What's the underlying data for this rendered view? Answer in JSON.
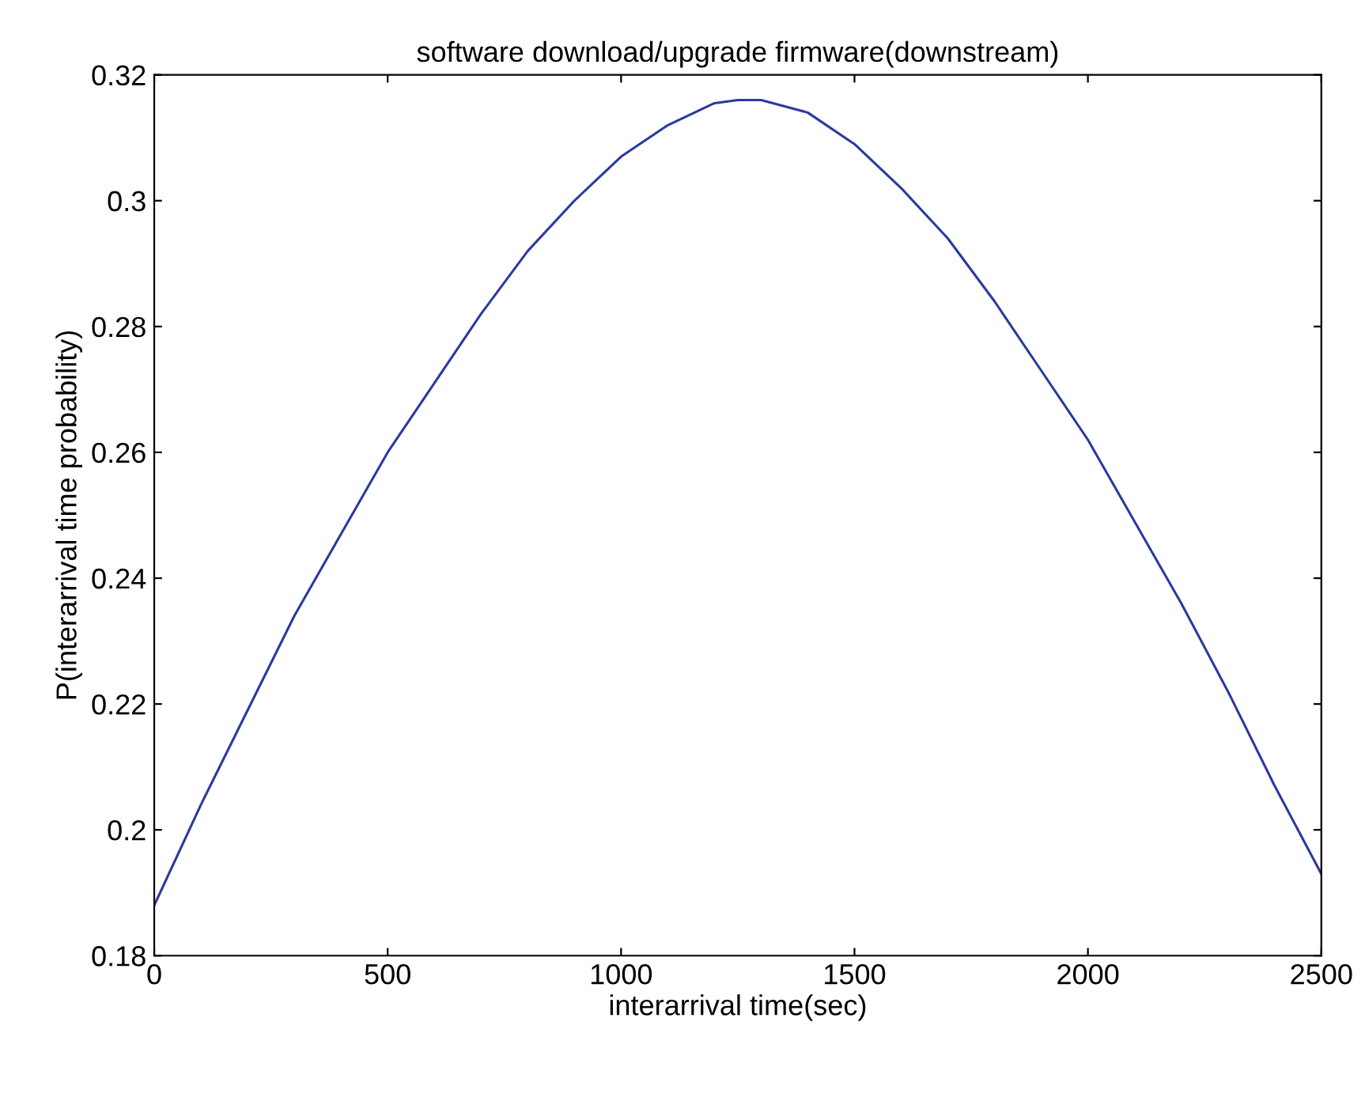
{
  "chart_data": {
    "type": "line",
    "title": "software download/upgrade firmware(downstream)",
    "xlabel": "interarrival time(sec)",
    "ylabel": "P(interarrival time probability)",
    "x": [
      0,
      100,
      200,
      300,
      400,
      500,
      600,
      700,
      800,
      900,
      1000,
      1100,
      1200,
      1250,
      1300,
      1400,
      1500,
      1600,
      1700,
      1800,
      1900,
      2000,
      2100,
      2200,
      2300,
      2400,
      2500
    ],
    "series": [
      {
        "color": "#2b3a9e",
        "values": [
          0.188,
          0.204,
          0.219,
          0.234,
          0.247,
          0.26,
          0.271,
          0.282,
          0.292,
          0.3,
          0.307,
          0.312,
          0.3155,
          0.316,
          0.316,
          0.314,
          0.309,
          0.302,
          0.294,
          0.284,
          0.273,
          0.262,
          0.249,
          0.236,
          0.222,
          0.207,
          0.193
        ]
      }
    ],
    "xlim": [
      0,
      2500
    ],
    "xticks": [
      0,
      500,
      1000,
      1500,
      2000,
      2500
    ],
    "ylim": [
      0.18,
      0.32
    ],
    "yticks": [
      0.18,
      0.2,
      0.22,
      0.24,
      0.26,
      0.28,
      0.3,
      0.32
    ],
    "grid": false,
    "legend": false
  }
}
